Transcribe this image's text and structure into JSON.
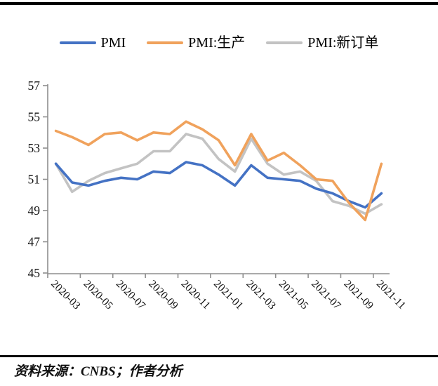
{
  "legend": {
    "items": [
      {
        "label": "PMI",
        "color": "#4472C4"
      },
      {
        "label": "PMI:生产",
        "color": "#F0A25C"
      },
      {
        "label": "PMI:新订单",
        "color": "#C3C3C3"
      }
    ]
  },
  "source_note": "资料来源：CNBS；作者分析",
  "chart_data": {
    "type": "line",
    "title": "",
    "xlabel": "",
    "ylabel": "",
    "categories": [
      "2020-03",
      "2020-04",
      "2020-05",
      "2020-06",
      "2020-07",
      "2020-08",
      "2020-09",
      "2020-10",
      "2020-11",
      "2020-12",
      "2021-01",
      "2021-02",
      "2021-03",
      "2021-04",
      "2021-05",
      "2021-06",
      "2021-07",
      "2021-08",
      "2021-09",
      "2021-10",
      "2021-11"
    ],
    "x_tick_labels": [
      "2020-03",
      "2020-05",
      "2020-07",
      "2020-09",
      "2020-11",
      "2021-01",
      "2021-03",
      "2021-05",
      "2021-07",
      "2021-09",
      "2021-11"
    ],
    "series": [
      {
        "name": "PMI",
        "color": "#4472C4",
        "values": [
          52.0,
          50.8,
          50.6,
          50.9,
          51.1,
          51.0,
          51.5,
          51.4,
          52.1,
          51.9,
          51.3,
          50.6,
          51.9,
          51.1,
          51.0,
          50.9,
          50.4,
          50.1,
          49.6,
          49.2,
          50.1
        ]
      },
      {
        "name": "PMI:生产",
        "color": "#F0A25C",
        "values": [
          54.1,
          53.7,
          53.2,
          53.9,
          54.0,
          53.5,
          54.0,
          53.9,
          54.7,
          54.2,
          53.5,
          51.9,
          53.9,
          52.2,
          52.7,
          51.9,
          51.0,
          50.9,
          49.5,
          48.4,
          52.0
        ]
      },
      {
        "name": "PMI:新订单",
        "color": "#C3C3C3",
        "values": [
          52.0,
          50.2,
          50.9,
          51.4,
          51.7,
          52.0,
          52.8,
          52.8,
          53.9,
          53.6,
          52.3,
          51.5,
          53.6,
          52.0,
          51.3,
          51.5,
          50.9,
          49.6,
          49.3,
          48.8,
          49.4
        ]
      }
    ],
    "ylim": [
      45,
      57
    ],
    "y_tick_step": 2,
    "grid": false,
    "legend_position": "top",
    "axis_color": "#8E8E8E",
    "label_color": "#111111",
    "draw_order": [
      2,
      0,
      1
    ]
  }
}
